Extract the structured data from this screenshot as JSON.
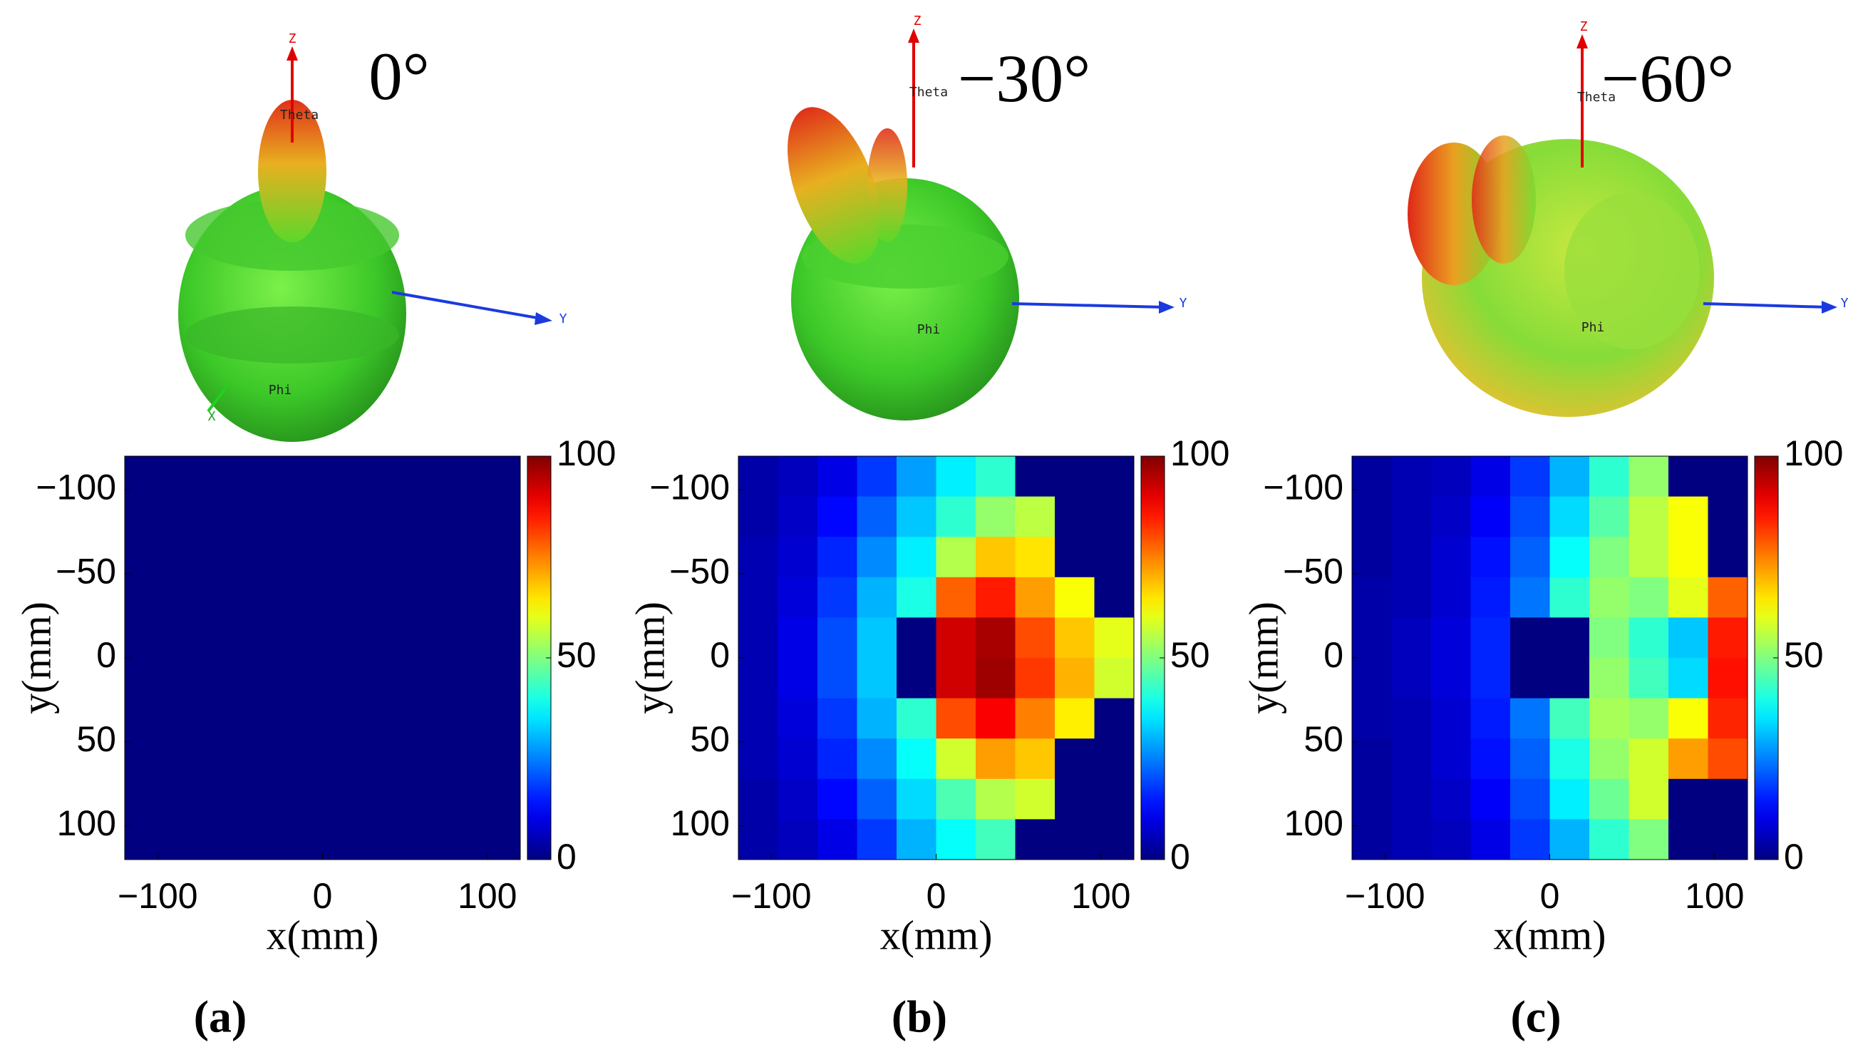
{
  "chart_data": [
    {
      "type": "heatmap",
      "title": "0°",
      "panel_label": "(a)",
      "pattern_labels": [
        "Z",
        "Theta",
        "Y",
        "Phi",
        "X"
      ],
      "xlabel": "x(mm)",
      "ylabel": "y(mm)",
      "x": [
        -108,
        -84,
        -60,
        -36,
        -12,
        12,
        36,
        60,
        84,
        108
      ],
      "y": [
        -108,
        -84,
        -60,
        -36,
        -12,
        12,
        36,
        60,
        84,
        108
      ],
      "values": [
        [
          0,
          0,
          0,
          0,
          0,
          0,
          0,
          0,
          0,
          0
        ],
        [
          0,
          0,
          0,
          0,
          0,
          0,
          0,
          0,
          0,
          0
        ],
        [
          0,
          0,
          0,
          0,
          0,
          0,
          0,
          0,
          0,
          0
        ],
        [
          0,
          0,
          0,
          0,
          0,
          0,
          0,
          0,
          0,
          0
        ],
        [
          0,
          0,
          0,
          0,
          0,
          0,
          0,
          0,
          0,
          0
        ],
        [
          0,
          0,
          0,
          0,
          0,
          0,
          0,
          0,
          0,
          0
        ],
        [
          0,
          0,
          0,
          0,
          0,
          0,
          0,
          0,
          0,
          0
        ],
        [
          0,
          0,
          0,
          0,
          0,
          0,
          0,
          0,
          0,
          0
        ],
        [
          0,
          0,
          0,
          0,
          0,
          0,
          0,
          0,
          0,
          0
        ],
        [
          0,
          0,
          0,
          0,
          0,
          0,
          0,
          0,
          0,
          0
        ]
      ],
      "xlim": [
        -120,
        120
      ],
      "ylim": [
        120,
        -120
      ],
      "xticks": [
        {
          "value": -100,
          "label": "−100"
        },
        0,
        100
      ],
      "yticks": [
        {
          "value": -100,
          "label": "−100"
        },
        {
          "value": -50,
          "label": "−50"
        },
        0,
        50,
        100
      ],
      "colorbar": {
        "lim": [
          0,
          100
        ],
        "ticks": [
          0,
          50,
          100
        ],
        "colormap": "jet"
      }
    },
    {
      "type": "heatmap",
      "title": "−30°",
      "panel_label": "(b)",
      "pattern_labels": [
        "Z",
        "Theta",
        "Y",
        "Phi"
      ],
      "xlabel": "x(mm)",
      "ylabel": "y(mm)",
      "x": [
        -108,
        -84,
        -60,
        -36,
        -12,
        12,
        36,
        60,
        84,
        108
      ],
      "y": [
        -108,
        -84,
        -60,
        -36,
        -12,
        12,
        36,
        60,
        84,
        108
      ],
      "values": [
        [
          4,
          6,
          10,
          18,
          28,
          36,
          42,
          0,
          0,
          0
        ],
        [
          4,
          7,
          13,
          22,
          32,
          42,
          52,
          56,
          0,
          0
        ],
        [
          5,
          8,
          16,
          26,
          36,
          55,
          68,
          65,
          0,
          0
        ],
        [
          5,
          9,
          18,
          30,
          40,
          78,
          85,
          72,
          62,
          0
        ],
        [
          5,
          10,
          20,
          32,
          0,
          92,
          96,
          80,
          68,
          60
        ],
        [
          5,
          10,
          20,
          32,
          0,
          92,
          97,
          82,
          70,
          58
        ],
        [
          5,
          9,
          18,
          30,
          42,
          80,
          88,
          75,
          64,
          0
        ],
        [
          5,
          8,
          16,
          26,
          38,
          58,
          72,
          68,
          0,
          0
        ],
        [
          4,
          7,
          13,
          22,
          34,
          45,
          55,
          58,
          0,
          0
        ],
        [
          4,
          6,
          10,
          18,
          30,
          38,
          44,
          0,
          0,
          0
        ]
      ],
      "xlim": [
        -120,
        120
      ],
      "ylim": [
        120,
        -120
      ],
      "xticks": [
        {
          "value": -100,
          "label": "−100"
        },
        0,
        100
      ],
      "yticks": [
        {
          "value": -100,
          "label": "−100"
        },
        {
          "value": -50,
          "label": "−50"
        },
        0,
        50,
        100
      ],
      "colorbar": {
        "lim": [
          0,
          100
        ],
        "ticks": [
          0,
          50,
          100
        ],
        "colormap": "jet"
      }
    },
    {
      "type": "heatmap",
      "title": "−60°",
      "panel_label": "(c)",
      "pattern_labels": [
        "Z",
        "Theta",
        "Y",
        "Phi"
      ],
      "xlabel": "x(mm)",
      "ylabel": "y(mm)",
      "x": [
        -108,
        -84,
        -60,
        -36,
        -12,
        12,
        36,
        60,
        84,
        108
      ],
      "y": [
        -108,
        -84,
        -60,
        -36,
        -12,
        12,
        36,
        60,
        84,
        108
      ],
      "values": [
        [
          3,
          5,
          6,
          10,
          18,
          30,
          42,
          52,
          0,
          0
        ],
        [
          3,
          5,
          7,
          12,
          20,
          34,
          46,
          56,
          62,
          0
        ],
        [
          3,
          5,
          8,
          14,
          22,
          38,
          50,
          56,
          62,
          0
        ],
        [
          4,
          5,
          8,
          15,
          24,
          42,
          52,
          50,
          60,
          78
        ],
        [
          4,
          6,
          9,
          16,
          0,
          0,
          50,
          42,
          32,
          85
        ],
        [
          4,
          6,
          9,
          16,
          0,
          0,
          52,
          44,
          34,
          86
        ],
        [
          4,
          5,
          8,
          15,
          24,
          44,
          54,
          52,
          62,
          84
        ],
        [
          3,
          5,
          8,
          14,
          22,
          40,
          52,
          58,
          72,
          80
        ],
        [
          3,
          5,
          7,
          12,
          20,
          36,
          48,
          58,
          0,
          0
        ],
        [
          3,
          5,
          6,
          10,
          18,
          30,
          42,
          50,
          0,
          0
        ]
      ],
      "xlim": [
        -120,
        120
      ],
      "ylim": [
        120,
        -120
      ],
      "xticks": [
        {
          "value": -100,
          "label": "−100"
        },
        0,
        100
      ],
      "yticks": [
        {
          "value": -100,
          "label": "−100"
        },
        {
          "value": -50,
          "label": "−50"
        },
        0,
        50,
        100
      ],
      "colorbar": {
        "lim": [
          0,
          100
        ],
        "ticks": [
          0,
          50,
          100
        ],
        "colormap": "jet"
      }
    }
  ]
}
